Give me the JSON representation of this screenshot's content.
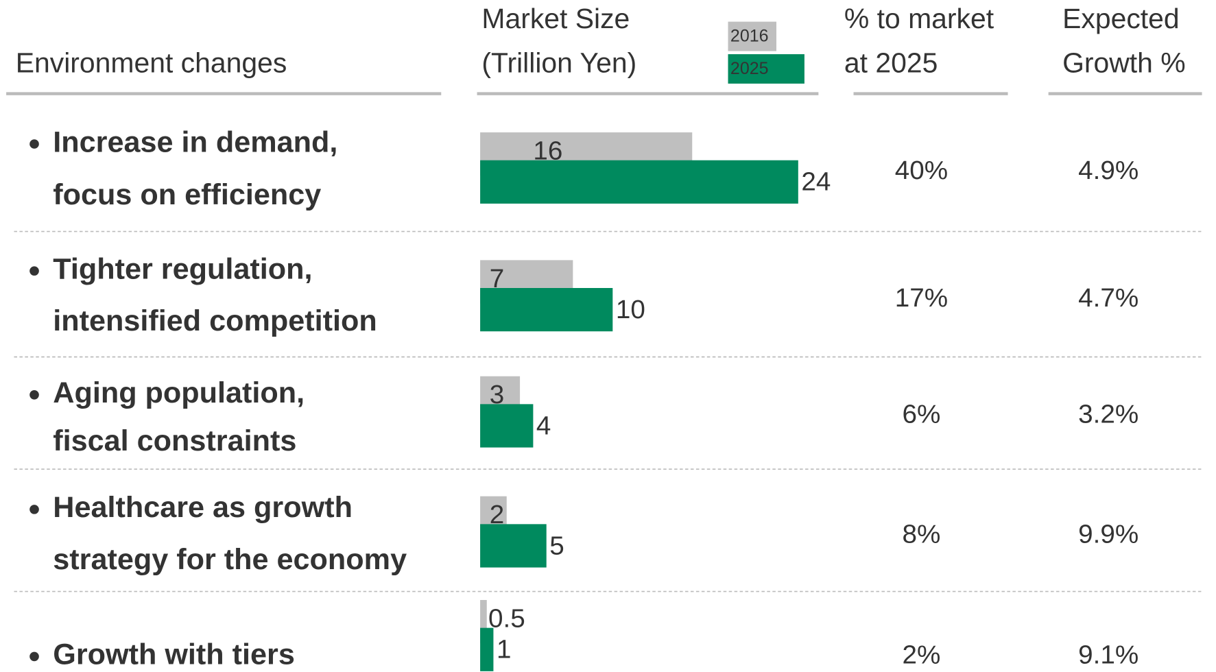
{
  "header": {
    "environment": "Environment changes",
    "market_size": [
      "Market Size",
      "(Trillion Yen)"
    ],
    "share": [
      "% to market",
      "at 2025"
    ],
    "growth": [
      "Expected",
      "Growth %"
    ]
  },
  "legend": [
    {
      "name": "2016",
      "color": "#bfbfbf"
    },
    {
      "name": "2025",
      "color": "#008a5e"
    }
  ],
  "rows": [
    {
      "label": [
        "Increase in demand,",
        "focus on efficiency"
      ],
      "size_2016": 16,
      "size_2025": 24,
      "share": "40%",
      "growth": "4.9%"
    },
    {
      "label": [
        "Tighter regulation,",
        "intensified competition"
      ],
      "size_2016": 7,
      "size_2025": 10,
      "share": "17%",
      "growth": "4.7%"
    },
    {
      "label": [
        "Aging population,",
        "fiscal constraints"
      ],
      "size_2016": 3,
      "size_2025": 4,
      "share": "6%",
      "growth": "3.2%"
    },
    {
      "label": [
        "Healthcare as growth",
        "strategy for the economy"
      ],
      "size_2016": 2,
      "size_2025": 5,
      "share": "8%",
      "growth": "9.9%"
    },
    {
      "label": [
        "Growth with tiers"
      ],
      "size_2016": 0.5,
      "size_2025": 1,
      "share": "2%",
      "growth": "9.1%"
    }
  ]
}
